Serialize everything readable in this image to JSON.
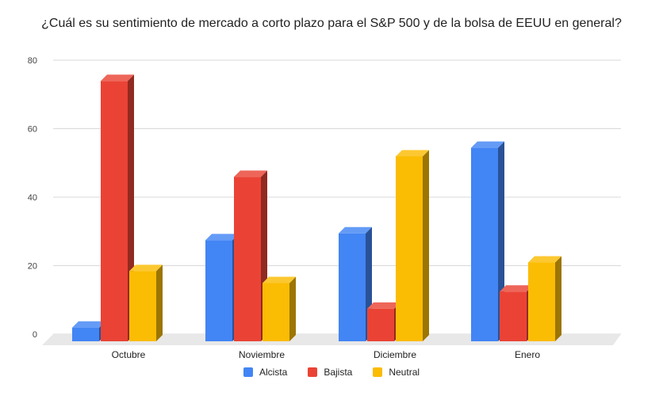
{
  "chart_data": {
    "type": "bar",
    "title": "¿Cuál es su sentimiento de mercado a corto plazo para el S&P 500 y de la bolsa de EEUU en general?",
    "categories": [
      "Octubre",
      "Noviembre",
      "Diciembre",
      "Enero"
    ],
    "series": [
      {
        "name": "Alcista",
        "color": "#4285f4",
        "values": [
          4,
          29.5,
          31.5,
          56.5
        ]
      },
      {
        "name": "Bajista",
        "color": "#ea4335",
        "values": [
          76,
          48,
          9.5,
          14.5
        ]
      },
      {
        "name": "Neutral",
        "color": "#fbbc04",
        "values": [
          20.5,
          17,
          54,
          23
        ]
      }
    ],
    "ylim": [
      0,
      80
    ],
    "yticks": [
      "0",
      "20",
      "40",
      "60",
      "80"
    ],
    "grid": true,
    "legend_position": "bottom",
    "three_d": true
  }
}
